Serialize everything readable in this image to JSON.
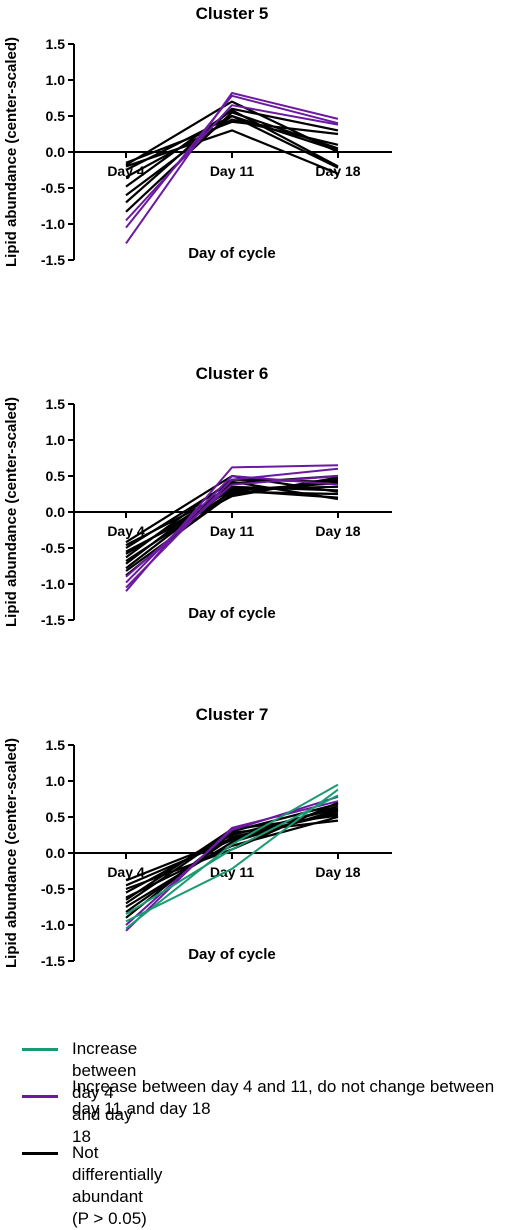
{
  "chart_data": [
    {
      "type": "line",
      "title": "Cluster 5",
      "xlabel": "Day of cycle",
      "ylabel": "Lipid abundance (center-scaled)",
      "categories": [
        "Day 4",
        "Day 11",
        "Day 18"
      ],
      "ylim": [
        -1.5,
        1.5
      ],
      "yticks": [
        "1.5",
        "1.0",
        "0.5",
        "0.0",
        "-0.5",
        "-1.0",
        "-1.5"
      ],
      "series": [
        {
          "group": "purple",
          "values": [
            -1.27,
            0.82,
            0.46
          ]
        },
        {
          "group": "purple",
          "values": [
            -1.05,
            0.78,
            0.4
          ]
        },
        {
          "group": "purple",
          "values": [
            -0.95,
            0.65,
            0.38
          ]
        },
        {
          "group": "black",
          "values": [
            -0.83,
            0.55,
            0.05
          ]
        },
        {
          "group": "black",
          "values": [
            -0.7,
            0.6,
            0.3
          ]
        },
        {
          "group": "black",
          "values": [
            -0.6,
            0.5,
            -0.22
          ]
        },
        {
          "group": "black",
          "values": [
            -0.48,
            0.58,
            -0.2
          ]
        },
        {
          "group": "black",
          "values": [
            -0.35,
            0.45,
            0.1
          ]
        },
        {
          "group": "black",
          "values": [
            -0.25,
            0.5,
            0.02
          ]
        },
        {
          "group": "black",
          "values": [
            -0.2,
            0.3,
            -0.3
          ]
        },
        {
          "group": "black",
          "values": [
            -0.18,
            0.7,
            0.0
          ]
        },
        {
          "group": "black",
          "values": [
            -0.15,
            0.42,
            0.25
          ]
        }
      ]
    },
    {
      "type": "line",
      "title": "Cluster 6",
      "xlabel": "Day of cycle",
      "ylabel": "Lipid abundance (center-scaled)",
      "categories": [
        "Day 4",
        "Day 11",
        "Day 18"
      ],
      "ylim": [
        -1.5,
        1.5
      ],
      "yticks": [
        "1.5",
        "1.0",
        "0.5",
        "0.0",
        "-0.5",
        "-1.0",
        "-1.5"
      ],
      "series": [
        {
          "group": "purple",
          "values": [
            -1.1,
            0.62,
            0.65
          ]
        },
        {
          "group": "purple",
          "values": [
            -1.05,
            0.45,
            0.6
          ]
        },
        {
          "group": "purple",
          "values": [
            -0.98,
            0.5,
            0.38
          ]
        },
        {
          "group": "purple",
          "values": [
            -0.9,
            0.38,
            0.5
          ]
        },
        {
          "group": "black",
          "values": [
            -0.88,
            0.3,
            0.2
          ]
        },
        {
          "group": "black",
          "values": [
            -0.82,
            0.25,
            0.45
          ]
        },
        {
          "group": "black",
          "values": [
            -0.78,
            0.35,
            0.3
          ]
        },
        {
          "group": "black",
          "values": [
            -0.72,
            0.4,
            0.5
          ]
        },
        {
          "group": "black",
          "values": [
            -0.68,
            0.28,
            0.25
          ]
        },
        {
          "group": "black",
          "values": [
            -0.63,
            0.45,
            0.42
          ]
        },
        {
          "group": "black",
          "values": [
            -0.58,
            0.32,
            0.35
          ]
        },
        {
          "group": "black",
          "values": [
            -0.55,
            0.22,
            0.48
          ]
        },
        {
          "group": "black",
          "values": [
            -0.5,
            0.42,
            0.18
          ]
        },
        {
          "group": "black",
          "values": [
            -0.46,
            0.3,
            0.4
          ]
        },
        {
          "group": "black",
          "values": [
            -0.42,
            0.5,
            0.28
          ]
        }
      ]
    },
    {
      "type": "line",
      "title": "Cluster 7",
      "xlabel": "Day of cycle",
      "ylabel": "Lipid abundance (center-scaled)",
      "categories": [
        "Day 4",
        "Day 11",
        "Day 18"
      ],
      "ylim": [
        -1.5,
        1.5
      ],
      "yticks": [
        "1.5",
        "1.0",
        "0.5",
        "0.0",
        "-0.5",
        "-1.0",
        "-1.5"
      ],
      "series": [
        {
          "group": "green",
          "values": [
            -1.05,
            0.12,
            0.95
          ]
        },
        {
          "group": "green",
          "values": [
            -0.95,
            -0.22,
            0.88
          ]
        },
        {
          "group": "green",
          "values": [
            -0.85,
            0.05,
            0.8
          ]
        },
        {
          "group": "purple",
          "values": [
            -1.08,
            0.35,
            0.72
          ]
        },
        {
          "group": "purple",
          "values": [
            -1.0,
            0.32,
            0.78
          ]
        },
        {
          "group": "black",
          "values": [
            -0.9,
            0.28,
            0.45
          ]
        },
        {
          "group": "black",
          "values": [
            -0.82,
            0.22,
            0.55
          ]
        },
        {
          "group": "black",
          "values": [
            -0.75,
            0.15,
            0.6
          ]
        },
        {
          "group": "black",
          "values": [
            -0.7,
            0.3,
            0.68
          ]
        },
        {
          "group": "black",
          "values": [
            -0.62,
            0.1,
            0.5
          ]
        },
        {
          "group": "black",
          "values": [
            -0.55,
            0.25,
            0.62
          ]
        },
        {
          "group": "black",
          "values": [
            -0.5,
            0.05,
            0.7
          ]
        },
        {
          "group": "black",
          "values": [
            -0.45,
            0.18,
            0.58
          ]
        },
        {
          "group": "black",
          "values": [
            -0.38,
            0.2,
            0.65
          ]
        },
        {
          "group": "black",
          "values": [
            -0.65,
            0.33,
            0.52
          ]
        }
      ]
    }
  ],
  "legend": [
    {
      "key": "green",
      "color": "#1a9a73",
      "label": "Increase between day 4 and day 18"
    },
    {
      "key": "purple",
      "color": "#6b1aa0",
      "label": "Increase between day 4 and 11, do not change between day 11 and day 18"
    },
    {
      "key": "black",
      "color": "#000000",
      "label": "Not differentially abundant (P > 0.05)"
    }
  ]
}
